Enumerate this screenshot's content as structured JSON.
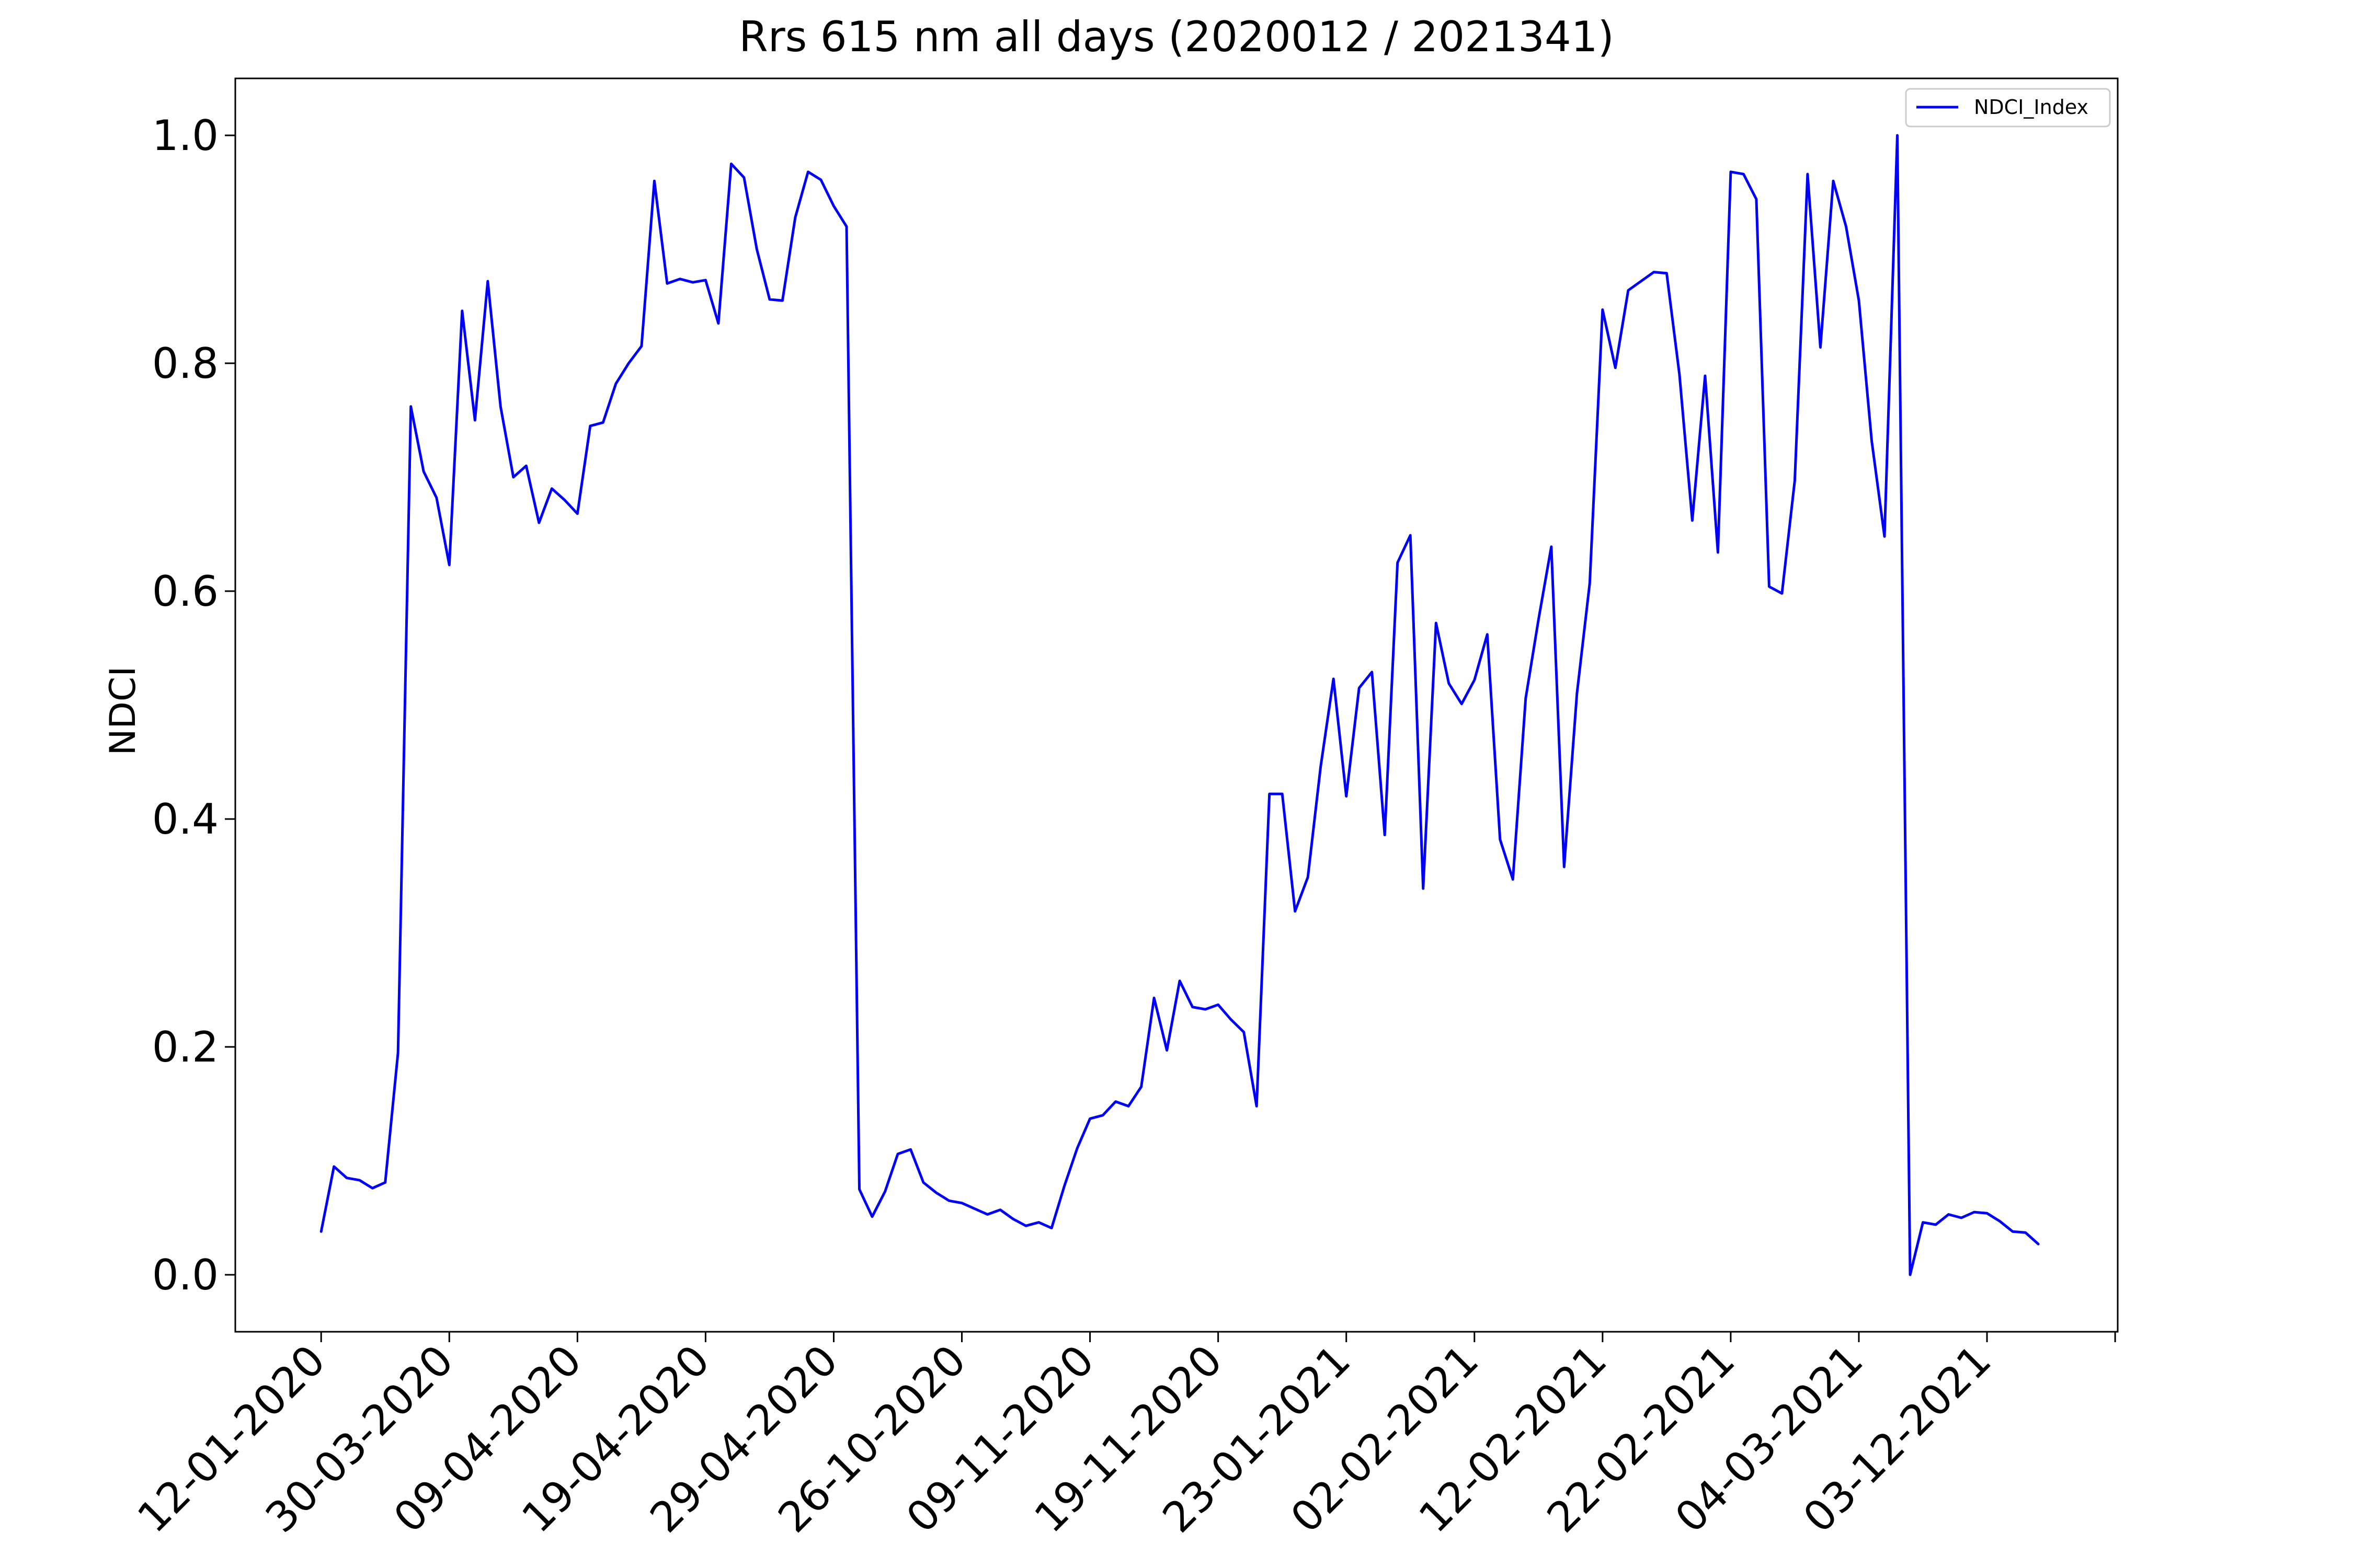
{
  "chart_data": {
    "type": "line",
    "title": "Rrs 615 nm all days (2020012 / 2021341)",
    "ylabel": "NDCI",
    "ylim": [
      -0.05,
      1.05
    ],
    "xlim": [
      -6.7,
      140.2
    ],
    "yticks": [
      "0.0",
      "0.2",
      "0.4",
      "0.6",
      "0.8",
      "1.0"
    ],
    "ytick_values": [
      0,
      0.2,
      0.4,
      0.6,
      0.8,
      1.0
    ],
    "xticks": [
      "12-01-2020",
      "30-03-2020",
      "09-04-2020",
      "19-04-2020",
      "29-04-2020",
      "26-10-2020",
      "09-11-2020",
      "19-11-2020",
      "23-01-2021",
      "02-02-2021",
      "12-02-2021",
      "22-02-2021",
      "04-03-2021",
      "03-12-2021"
    ],
    "xtick_positions": [
      0,
      10,
      20,
      30,
      40,
      50,
      60,
      70,
      80,
      90,
      100,
      110,
      120,
      130
    ],
    "grid": false,
    "legend_position": "top-right",
    "series": [
      {
        "name": "NDCI_Index",
        "color": "#0000ff",
        "values": [
          0.038,
          0.095,
          0.085,
          0.083,
          0.076,
          0.081,
          0.195,
          0.762,
          0.705,
          0.682,
          0.623,
          0.846,
          0.75,
          0.872,
          0.762,
          0.7,
          0.71,
          0.66,
          0.69,
          0.68,
          0.668,
          0.745,
          0.748,
          0.782,
          0.8,
          0.815,
          0.96,
          0.87,
          0.874,
          0.871,
          0.873,
          0.835,
          0.975,
          0.963,
          0.9,
          0.856,
          0.855,
          0.928,
          0.968,
          0.961,
          0.938,
          0.92,
          0.075,
          0.051,
          0.073,
          0.106,
          0.11,
          0.081,
          0.072,
          0.065,
          0.063,
          0.058,
          0.053,
          0.057,
          0.049,
          0.043,
          0.046,
          0.041,
          0.078,
          0.111,
          0.137,
          0.14,
          0.152,
          0.148,
          0.165,
          0.243,
          0.197,
          0.258,
          0.235,
          0.233,
          0.237,
          0.224,
          0.213,
          0.148,
          0.422,
          0.422,
          0.319,
          0.349,
          0.446,
          0.523,
          0.42,
          0.515,
          0.529,
          0.386,
          0.625,
          0.649,
          0.339,
          0.572,
          0.519,
          0.501,
          0.522,
          0.562,
          0.382,
          0.347,
          0.506,
          0.575,
          0.639,
          0.358,
          0.51,
          0.607,
          0.847,
          0.796,
          0.864,
          0.872,
          0.88,
          0.879,
          0.79,
          0.662,
          0.789,
          0.634,
          0.968,
          0.966,
          0.944,
          0.604,
          0.598,
          0.697,
          0.966,
          0.814,
          0.96,
          0.92,
          0.855,
          0.732,
          0.648,
          1.0,
          0.0,
          0.046,
          0.044,
          0.053,
          0.05,
          0.055,
          0.054,
          0.047,
          0.038,
          0.037,
          0.027
        ]
      }
    ]
  }
}
